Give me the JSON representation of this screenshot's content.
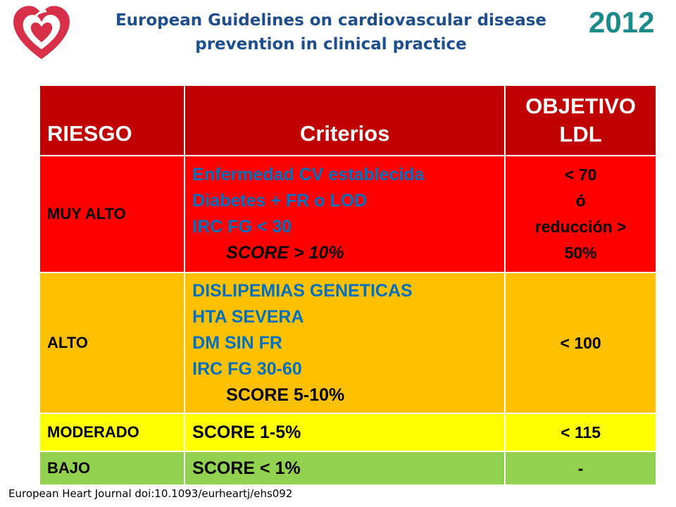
{
  "header": {
    "title_line1": "European Guidelines on cardiovascular disease",
    "title_line2": "prevention in clinical practice",
    "year": "2012",
    "logo_icon": "esc-heart-logo-icon",
    "colors": {
      "title": "#1f4e8c",
      "year": "#1a8a8a",
      "logo": "#d9304a"
    }
  },
  "table": {
    "headers": {
      "riesgo": "RIESGO",
      "criterios": "Criterios",
      "objetivo_line1": "OBJETIVO",
      "objetivo_line2": "LDL"
    },
    "rows": {
      "muy_alto": {
        "level": "MUY ALTO",
        "criteria": [
          "Enfermedad CV establecida",
          "Diabetes + FR o LOD",
          "IRC FG < 30"
        ],
        "score": "SCORE > 10%",
        "objective": [
          "< 70",
          "ó",
          "reducción >",
          "50%"
        ],
        "color": "#ff0000"
      },
      "alto": {
        "level": "ALTO",
        "criteria": [
          "DISLIPEMIAS GENETICAS",
          "HTA SEVERA",
          "DM SIN FR",
          "IRC FG 30-60"
        ],
        "score": "SCORE  5-10%",
        "objective": "< 100",
        "color": "#ffc000"
      },
      "moderado": {
        "level": "MODERADO",
        "score": "SCORE 1-5%",
        "objective": "< 115",
        "color": "#ffff00"
      },
      "bajo": {
        "level": "BAJO",
        "score": "SCORE < 1%",
        "objective": "-",
        "color": "#92d050"
      }
    },
    "header_color": "#c00000",
    "criteria_text_color": "#0070c0"
  },
  "footer": {
    "citation": "European Heart Journal   doi:10.1093/eurheartj/ehs092"
  }
}
